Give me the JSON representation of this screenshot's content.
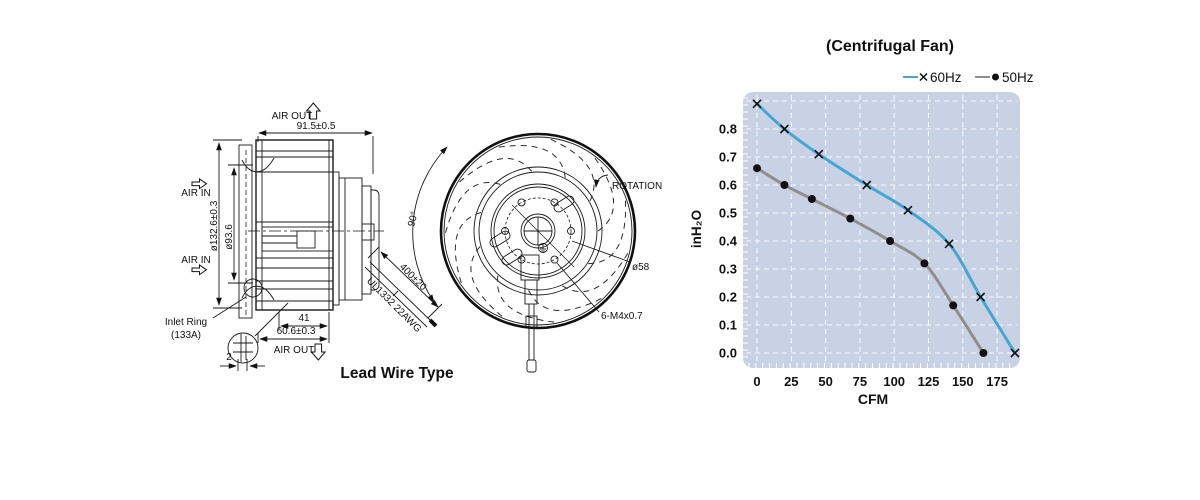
{
  "drawing": {
    "caption": "Lead Wire Type",
    "labels": {
      "air_out_top": "AIR OUT",
      "air_in_1": "AIR IN",
      "air_in_2": "AIR IN",
      "air_out_bottom": "AIR OUT",
      "dim_width": "91.5±0.5",
      "dim_outer_dia": "ø132.6±0.3",
      "dim_inner_dia": "ø93.6",
      "dim_depth_41": "41",
      "dim_depth_606": "60.6±0.3",
      "dim_2": "2",
      "inlet_ring_line1": "Inlet Ring",
      "inlet_ring_line2": "(133A)",
      "wire_length": "400±20",
      "wire_spec": "UL1332 22AWG",
      "rotation": "ROTATION",
      "angle_90": "90°",
      "bolt_circle": "ø58",
      "mount_holes": "6-M4x0.7"
    }
  },
  "chart_data": {
    "type": "line",
    "title": "(Centrifugal Fan)",
    "xlabel": "CFM",
    "ylabel": "inH₂O",
    "xlim": [
      0,
      190
    ],
    "ylim": [
      0,
      0.9
    ],
    "x_ticks": [
      0,
      25,
      50,
      75,
      100,
      125,
      150,
      175
    ],
    "y_ticks": [
      0.0,
      0.1,
      0.2,
      0.3,
      0.4,
      0.5,
      0.6,
      0.7,
      0.8
    ],
    "grid": true,
    "legend_position": "top-right",
    "plot_bg": "#c9d2e4",
    "grid_color": "#ffffff",
    "series": [
      {
        "name": "60Hz",
        "marker": "x",
        "color": "#45a6d2",
        "marker_color": "#111111",
        "points": [
          [
            0,
            0.89
          ],
          [
            20,
            0.8
          ],
          [
            45,
            0.71
          ],
          [
            80,
            0.6
          ],
          [
            110,
            0.51
          ],
          [
            140,
            0.39
          ],
          [
            163,
            0.2
          ],
          [
            188,
            0.0
          ]
        ]
      },
      {
        "name": "50Hz",
        "marker": "dot",
        "color": "#8e8e8e",
        "marker_color": "#111111",
        "points": [
          [
            0,
            0.66
          ],
          [
            20,
            0.6
          ],
          [
            40,
            0.55
          ],
          [
            68,
            0.48
          ],
          [
            97,
            0.4
          ],
          [
            122,
            0.32
          ],
          [
            143,
            0.17
          ],
          [
            165,
            0.0
          ]
        ]
      }
    ]
  }
}
